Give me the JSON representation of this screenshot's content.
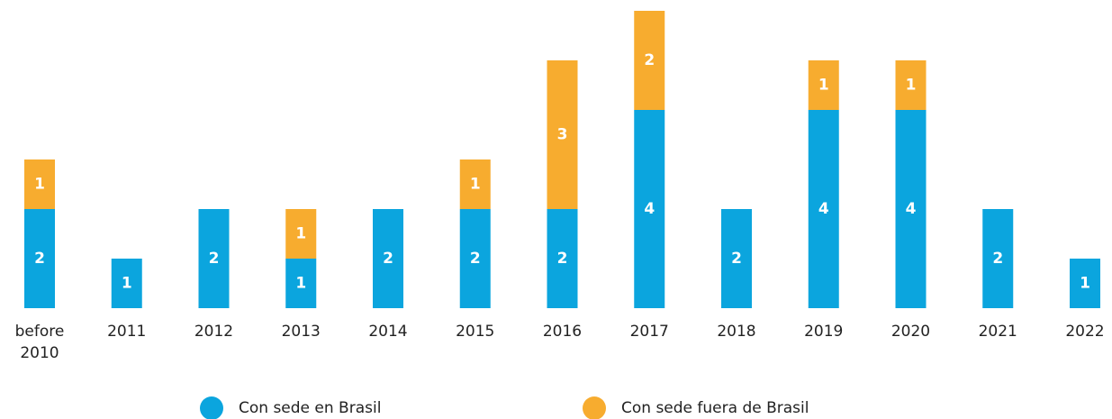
{
  "chart_data": {
    "type": "stacked_bar",
    "categories": [
      "before 2010",
      "2011",
      "2012",
      "2013",
      "2014",
      "2015",
      "2016",
      "2017",
      "2018",
      "2019",
      "2020",
      "2021",
      "2022"
    ],
    "series": [
      {
        "name": "Con sede en Brasil",
        "color": "#0ba5de",
        "values": [
          2,
          1,
          2,
          1,
          2,
          2,
          2,
          4,
          2,
          4,
          4,
          2,
          1
        ]
      },
      {
        "name": "Con sede fuera de Brasil",
        "color": "#f7ac2f",
        "values": [
          1,
          null,
          null,
          1,
          null,
          1,
          3,
          2,
          null,
          1,
          1,
          null,
          null
        ]
      }
    ]
  }
}
